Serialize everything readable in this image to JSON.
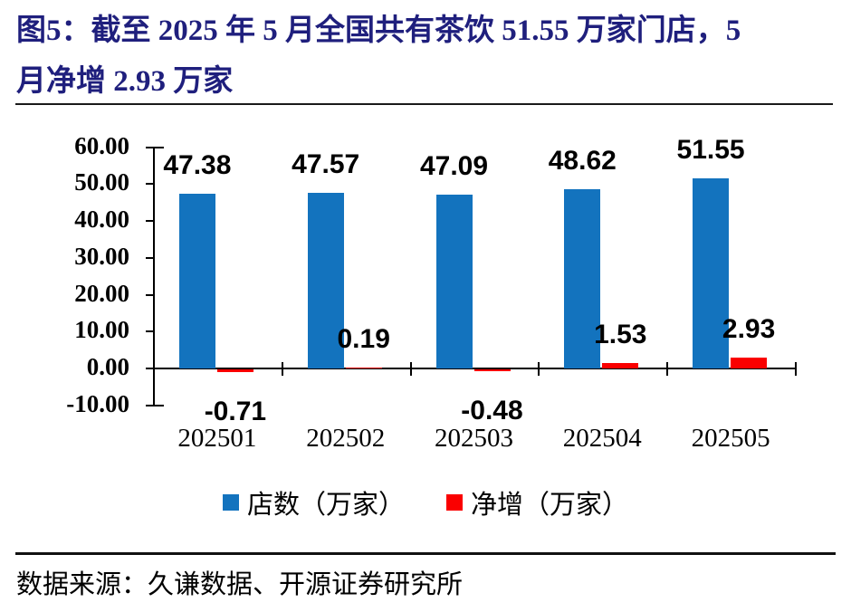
{
  "title": {
    "line1": "图5：截至 2025 年 5 月全国共有茶饮 51.55 万家门店，5",
    "line2": "月净增 2.93 万家"
  },
  "chart_data": {
    "type": "bar",
    "categories": [
      "202501",
      "202502",
      "202503",
      "202504",
      "202505"
    ],
    "series": [
      {
        "name": "店数（万家）",
        "color": "#1373BE",
        "values": [
          47.38,
          47.57,
          47.09,
          48.62,
          51.55
        ]
      },
      {
        "name": "净增（万家）",
        "color": "#FA0000",
        "values": [
          -0.71,
          0.19,
          -0.48,
          1.53,
          2.93
        ]
      }
    ],
    "ylim": [
      -10,
      60
    ],
    "ytick_values": [
      60,
      50,
      40,
      30,
      20,
      10,
      0,
      -10
    ],
    "ytick_labels": [
      "60.00",
      "50.00",
      "40.00",
      "30.00",
      "20.00",
      "10.00",
      "0.00",
      "-10.00"
    ],
    "data_labels": {
      "store_counts": [
        "47.38",
        "47.57",
        "47.09",
        "48.62",
        "51.55"
      ],
      "net_adds": [
        "-0.71",
        "0.19",
        "-0.48",
        "1.53",
        "2.93"
      ]
    },
    "grid": false,
    "legend_position": "bottom",
    "axis_color": "#000000"
  },
  "footer": {
    "source": "数据来源：久谦数据、开源证券研究所"
  },
  "colors": {
    "title": "#1F1F7D",
    "bar_blue": "#1373BE",
    "bar_red": "#FA0000",
    "text": "#000000"
  }
}
